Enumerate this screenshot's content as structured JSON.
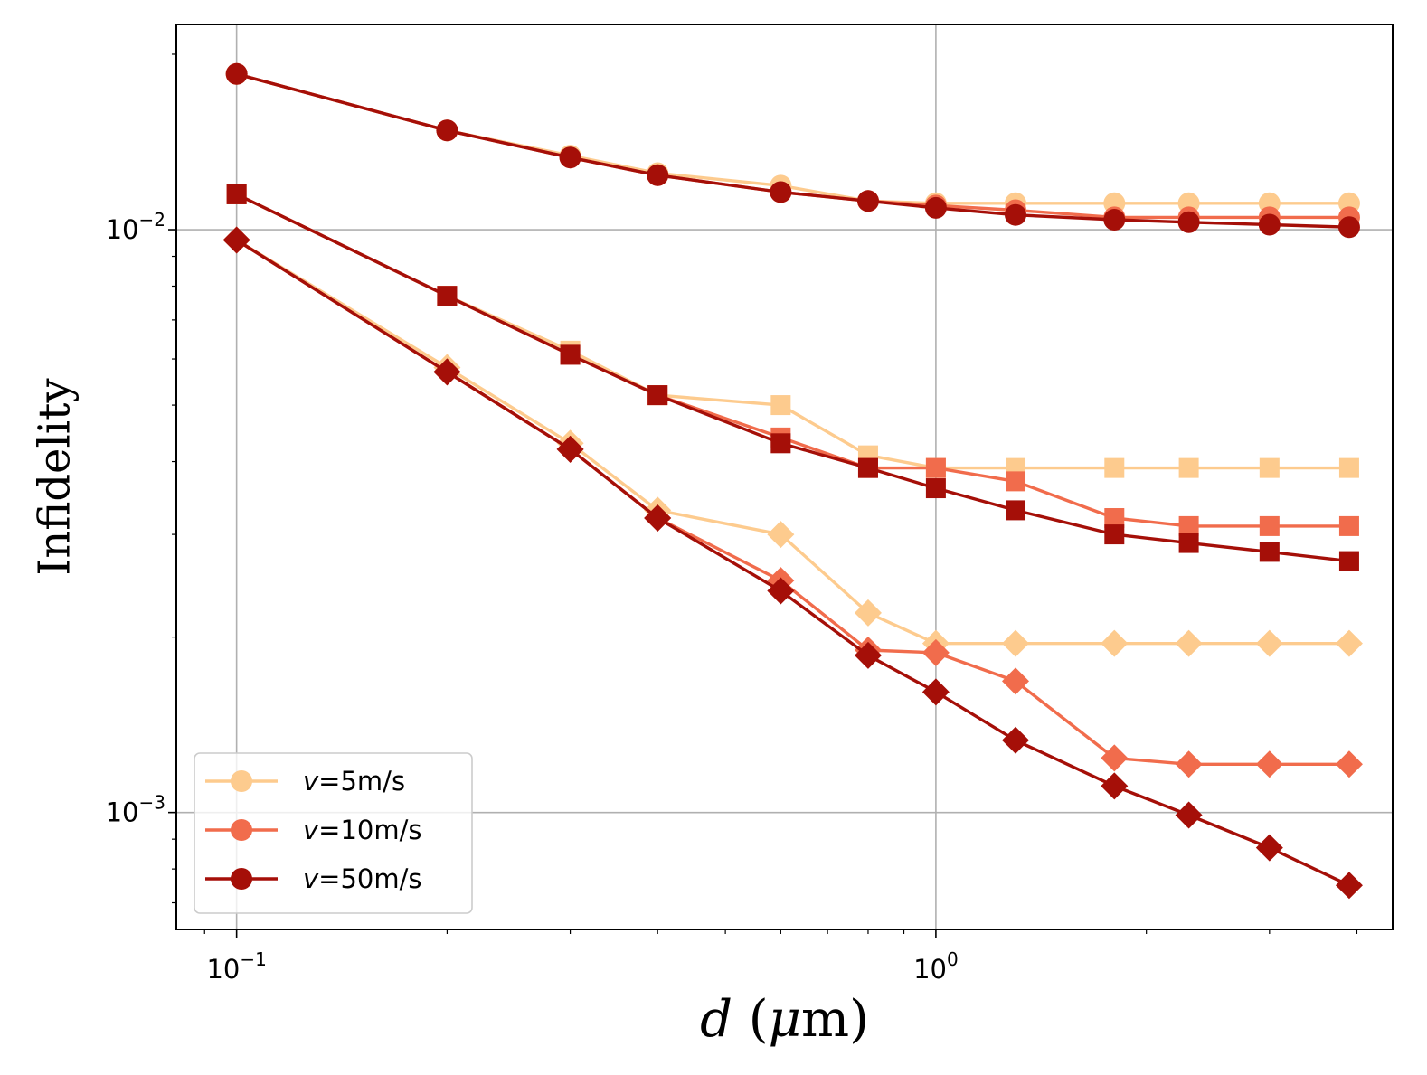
{
  "chart_data": {
    "type": "line",
    "title": "",
    "xlabel": "d (μm)",
    "ylabel": "Infidelity",
    "xscale": "log",
    "yscale": "log",
    "xlim": [
      0.082,
      4.5
    ],
    "ylim": [
      0.00063,
      0.0225
    ],
    "grid": true,
    "legend_position": "lower-left",
    "x_major_ticks": [
      {
        "value": 0.1,
        "base": "10",
        "exp": "−1"
      },
      {
        "value": 1,
        "base": "10",
        "exp": "0"
      }
    ],
    "y_major_ticks": [
      {
        "value": 0.01,
        "base": "10",
        "exp": "−2"
      },
      {
        "value": 0.001,
        "base": "10",
        "exp": "−3"
      }
    ],
    "x": [
      0.1,
      0.2,
      0.3,
      0.4,
      0.6,
      0.8,
      1.0,
      1.3,
      1.8,
      2.3,
      3.0,
      3.9
    ],
    "legend": [
      {
        "label": "v=5m/s",
        "italic": "v",
        "rest": "=5m/s",
        "color": "#fdcb8e",
        "marker": "circle"
      },
      {
        "label": "v=10m/s",
        "italic": "v",
        "rest": "=10m/s",
        "color": "#f16c4c",
        "marker": "circle"
      },
      {
        "label": "v=50m/s",
        "italic": "v",
        "rest": "=50m/s",
        "color": "#a50f08",
        "marker": "circle"
      }
    ],
    "series": [
      {
        "velocity": "5m/s",
        "marker": "circle",
        "color": "#fdcb8e",
        "values": [
          0.0185,
          0.0148,
          0.0134,
          0.0125,
          0.0119,
          0.0112,
          0.0111,
          0.0111,
          0.0111,
          0.0111,
          0.0111,
          0.0111
        ]
      },
      {
        "velocity": "10m/s",
        "marker": "circle",
        "color": "#f16c4c",
        "values": [
          0.0185,
          0.0148,
          0.0133,
          0.0124,
          0.0116,
          0.0112,
          0.011,
          0.0108,
          0.0105,
          0.0105,
          0.0105,
          0.0105
        ]
      },
      {
        "velocity": "50m/s",
        "marker": "circle",
        "color": "#a50f08",
        "values": [
          0.0185,
          0.0148,
          0.0133,
          0.0124,
          0.0116,
          0.0112,
          0.0109,
          0.0106,
          0.0104,
          0.0103,
          0.0102,
          0.0101
        ]
      },
      {
        "velocity": "5m/s",
        "marker": "square",
        "color": "#fdcb8e",
        "values": [
          0.0115,
          0.0077,
          0.0062,
          0.0052,
          0.005,
          0.0041,
          0.0039,
          0.0039,
          0.0039,
          0.0039,
          0.0039,
          0.0039
        ]
      },
      {
        "velocity": "10m/s",
        "marker": "square",
        "color": "#f16c4c",
        "values": [
          0.0115,
          0.0077,
          0.0061,
          0.0052,
          0.0044,
          0.0039,
          0.0039,
          0.0037,
          0.0032,
          0.0031,
          0.0031,
          0.0031
        ]
      },
      {
        "velocity": "50m/s",
        "marker": "square",
        "color": "#a50f08",
        "values": [
          0.0115,
          0.0077,
          0.0061,
          0.0052,
          0.0043,
          0.0039,
          0.0036,
          0.0033,
          0.003,
          0.0029,
          0.0028,
          0.0027
        ]
      },
      {
        "velocity": "5m/s",
        "marker": "diamond",
        "color": "#fdcb8e",
        "values": [
          0.0096,
          0.0058,
          0.0043,
          0.0033,
          0.003,
          0.0022,
          0.00195,
          0.00195,
          0.00195,
          0.00195,
          0.00195,
          0.00195
        ]
      },
      {
        "velocity": "10m/s",
        "marker": "diamond",
        "color": "#f16c4c",
        "values": [
          0.0096,
          0.0057,
          0.0042,
          0.0032,
          0.0025,
          0.0019,
          0.00188,
          0.00168,
          0.00124,
          0.00121,
          0.00121,
          0.00121
        ]
      },
      {
        "velocity": "50m/s",
        "marker": "diamond",
        "color": "#a50f08",
        "values": [
          0.0096,
          0.0057,
          0.0042,
          0.0032,
          0.0024,
          0.00186,
          0.00161,
          0.00133,
          0.00111,
          0.00099,
          0.00087,
          0.00075
        ]
      }
    ]
  }
}
